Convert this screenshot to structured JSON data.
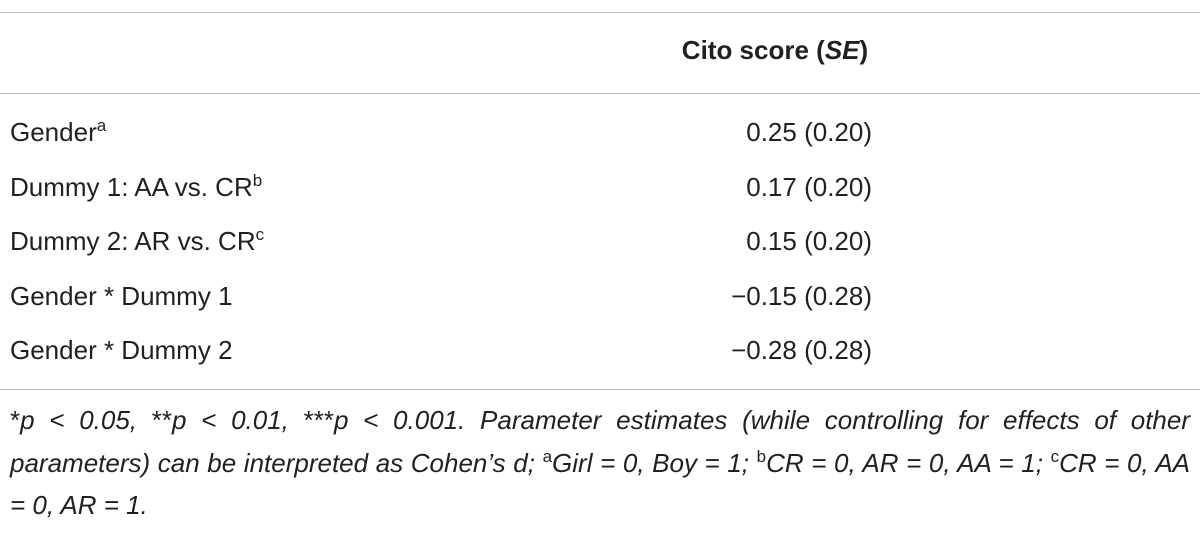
{
  "table": {
    "header": [
      {
        "text": "Cito score (",
        "style": "normal"
      },
      {
        "text": "SE",
        "style": "italic"
      },
      {
        "text": ")",
        "style": "normal"
      }
    ],
    "rows": [
      {
        "label": "Gender",
        "sup": "a",
        "value": "0.25 (0.20)"
      },
      {
        "label": "Dummy 1: AA vs. CR",
        "sup": "b",
        "value": "0.17 (0.20)"
      },
      {
        "label": "Dummy 2: AR vs. CR",
        "sup": "c",
        "value": "0.15 (0.20)"
      },
      {
        "label": "Gender * Dummy 1",
        "value": "−0.15 (0.28)"
      },
      {
        "label": "Gender * Dummy 2",
        "value": "−0.28 (0.28)"
      }
    ],
    "footnote": [
      {
        "text": "*",
        "style": "normal"
      },
      {
        "text": "p < 0.05, ",
        "style": "italic"
      },
      {
        "text": "**",
        "style": "normal"
      },
      {
        "text": "p < 0.01, ",
        "style": "italic"
      },
      {
        "text": "***",
        "style": "normal"
      },
      {
        "text": "p < 0.001. Parameter estimates (while controlling for effects of other parameters) can be interpreted as Cohen’s d; ",
        "style": "italic"
      },
      {
        "text": "a",
        "style": "sup"
      },
      {
        "text": "Girl = 0, Boy = 1; ",
        "style": "italic"
      },
      {
        "text": "b",
        "style": "sup"
      },
      {
        "text": "CR = 0, AR = 0, AA = 1; ",
        "style": "italic"
      },
      {
        "text": "c",
        "style": "sup"
      },
      {
        "text": "CR = 0, AA = 0, AR = 1.",
        "style": "italic"
      }
    ]
  }
}
